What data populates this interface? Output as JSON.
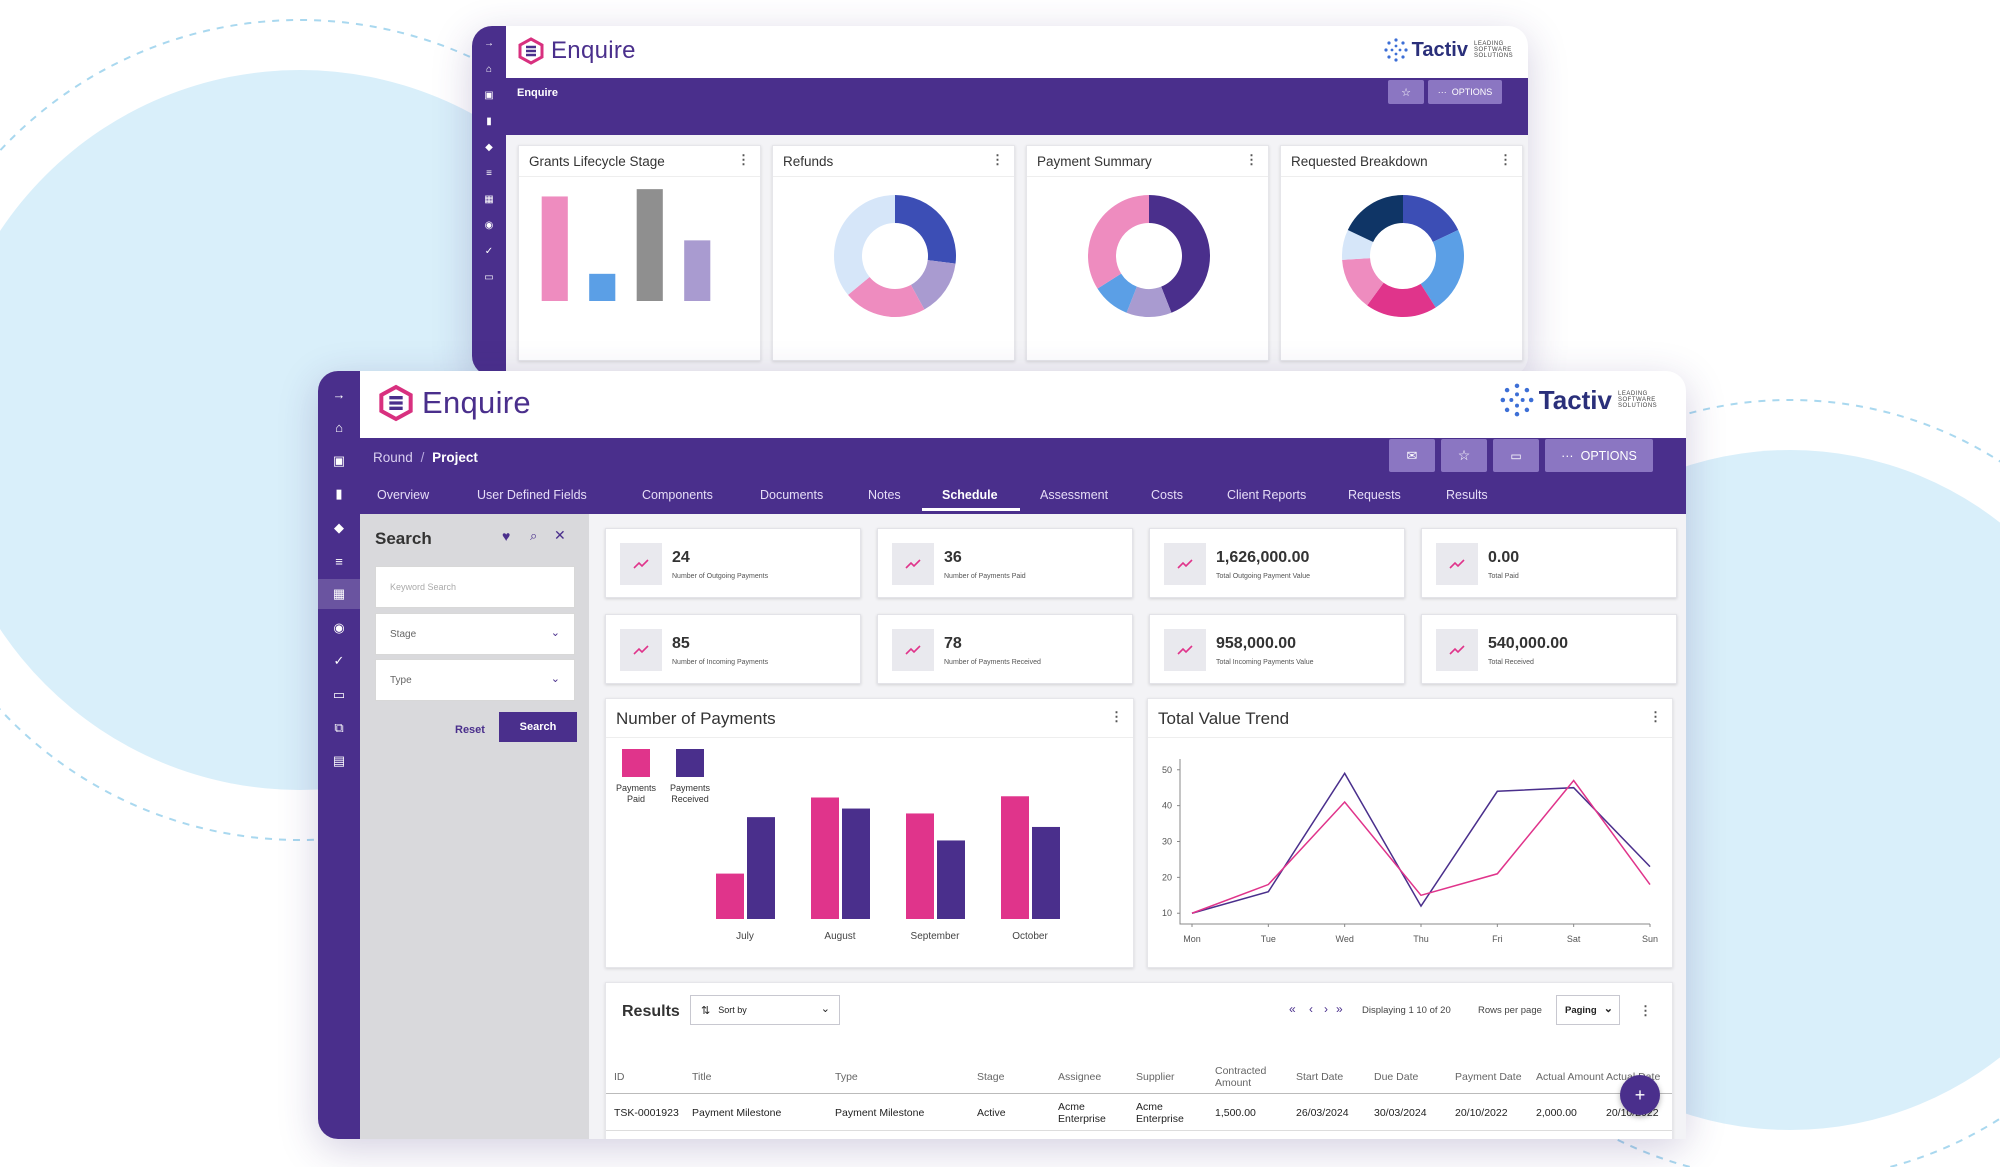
{
  "colors": {
    "brand_purple": "#4a2f8c",
    "pink": "#e0348b",
    "light_pink": "#ee8cbf",
    "lavender": "#a99bd0",
    "blue": "#5b9fe6",
    "grey": "#8f8f8f",
    "navy": "#0f3566",
    "royal": "#3c4eb5"
  },
  "back_window": {
    "app_name": "Enquire",
    "brand_partner": "Tactiv",
    "partner_tagline": "LEADING SOFTWARE SOLUTIONS",
    "breadcrumb": "Enquire",
    "options_label": "OPTIONS",
    "star_icon": "star-icon",
    "nav_icons": [
      "arrow-right-icon",
      "home-icon",
      "contact-card-icon",
      "bookmark-icon",
      "layers-icon",
      "list-icon",
      "grid-icon",
      "search-doc-icon",
      "check-icon",
      "card-icon"
    ],
    "widgets": [
      {
        "title": "Grants Lifecycle Stage",
        "type": "bar"
      },
      {
        "title": "Refunds",
        "type": "donut"
      },
      {
        "title": "Payment Summary",
        "type": "donut"
      },
      {
        "title": "Requested Breakdown",
        "type": "donut"
      }
    ]
  },
  "front_window": {
    "app_name": "Enquire",
    "brand_partner": "Tactiv",
    "partner_tagline": "LEADING SOFTWARE SOLUTIONS",
    "breadcrumb": {
      "parent": "Round",
      "separator": "/",
      "current": "Project"
    },
    "toolbar": {
      "options_label": "OPTIONS",
      "icons": [
        "mail-icon",
        "star-icon",
        "comment-icon"
      ]
    },
    "tabs": [
      "Overview",
      "User Defined Fields",
      "Components",
      "Documents",
      "Notes",
      "Schedule",
      "Assessment",
      "Costs",
      "Client Reports",
      "Requests",
      "Results"
    ],
    "selected_tab": "Schedule",
    "nav_icons": [
      "arrow-right-icon",
      "home-icon",
      "contact-card-icon",
      "bookmark-icon",
      "layers-icon",
      "list-icon",
      "grid-icon",
      "search-doc-icon",
      "check-icon",
      "card-icon",
      "copy-icon",
      "document-icon"
    ],
    "search_panel": {
      "title": "Search",
      "keyword_placeholder": "Keyword Search",
      "stage_label": "Stage",
      "type_label": "Type",
      "reset_label": "Reset",
      "search_label": "Search"
    },
    "kpis": [
      {
        "value": "24",
        "label": "Number of Outgoing Payments"
      },
      {
        "value": "36",
        "label": "Number of Payments Paid"
      },
      {
        "value": "1,626,000.00",
        "label": "Total Outgoing Payment Value"
      },
      {
        "value": "0.00",
        "label": "Total Paid"
      },
      {
        "value": "85",
        "label": "Number of Incoming Payments"
      },
      {
        "value": "78",
        "label": "Number of Payments Received"
      },
      {
        "value": "958,000.00",
        "label": "Total Incoming Payments Value"
      },
      {
        "value": "540,000.00",
        "label": "Total Received"
      }
    ],
    "results": {
      "title": "Results",
      "sort_label": "Sort by",
      "displaying": "Displaying 1  10 of 20",
      "rows_per_page_label": "Rows per page",
      "paging_label": "Paging",
      "columns": [
        "ID",
        "Title",
        "Type",
        "Stage",
        "Assignee",
        "Supplier",
        "Contracted Amount",
        "Start Date",
        "Due Date",
        "Payment Date",
        "Actual Amount",
        "Actual Date"
      ],
      "rows": [
        [
          "TSK-0001923",
          "Payment Milestone",
          "Payment Milestone",
          "Active",
          "Acme Enterprise",
          "Acme Enterprise",
          "1,500.00",
          "26/03/2024",
          "30/03/2024",
          "20/10/2022",
          "2,000.00",
          "20/10/2022"
        ]
      ],
      "add_icon": "plus-icon"
    }
  },
  "chart_data": [
    {
      "type": "bar",
      "title": "Grants Lifecycle Stage",
      "values": [
        100,
        26,
        107,
        58
      ],
      "colors": [
        "#ee8cbf",
        "#5b9fe6",
        "#8f8f8f",
        "#a99bd0"
      ],
      "ylim": [
        0,
        110
      ]
    },
    {
      "type": "pie",
      "title": "Refunds",
      "slices": [
        {
          "value": 27,
          "color": "#3c4eb5"
        },
        {
          "value": 15,
          "color": "#a99bd0"
        },
        {
          "value": 22,
          "color": "#ee8cbf"
        },
        {
          "value": 36,
          "color": "#d6e6f9"
        }
      ]
    },
    {
      "type": "pie",
      "title": "Payment Summary",
      "slices": [
        {
          "value": 44,
          "color": "#4a2f8c"
        },
        {
          "value": 12,
          "color": "#a99bd0"
        },
        {
          "value": 10,
          "color": "#5b9fe6"
        },
        {
          "value": 34,
          "color": "#ee8cbf"
        }
      ]
    },
    {
      "type": "pie",
      "title": "Requested Breakdown",
      "slices": [
        {
          "value": 18,
          "color": "#3c4eb5"
        },
        {
          "value": 23,
          "color": "#5b9fe6"
        },
        {
          "value": 19,
          "color": "#e0348b"
        },
        {
          "value": 14,
          "color": "#ee8cbf"
        },
        {
          "value": 8,
          "color": "#d6e6f9"
        },
        {
          "value": 18,
          "color": "#0f3566"
        }
      ]
    },
    {
      "type": "bar",
      "title": "Number of Payments",
      "categories": [
        "July",
        "August",
        "September",
        "October"
      ],
      "series": [
        {
          "name": "Payments Paid",
          "color": "#e0348b",
          "values": [
            37,
            99,
            86,
            100
          ]
        },
        {
          "name": "Payments Received",
          "color": "#4a2f8c",
          "values": [
            83,
            90,
            64,
            75
          ]
        }
      ],
      "ylim": [
        0,
        110
      ]
    },
    {
      "type": "line",
      "title": "Total Value Trend",
      "categories": [
        "Mon",
        "Tue",
        "Wed",
        "Thu",
        "Fri",
        "Sat",
        "Sun"
      ],
      "ylim": [
        7,
        53
      ],
      "yticks": [
        10,
        20,
        30,
        40,
        50
      ],
      "series": [
        {
          "color": "#4a2f8c",
          "values": [
            10,
            16,
            49,
            12,
            44,
            45,
            23
          ]
        },
        {
          "color": "#e0348b",
          "values": [
            10,
            18,
            41,
            15,
            21,
            47,
            18
          ]
        }
      ]
    }
  ]
}
